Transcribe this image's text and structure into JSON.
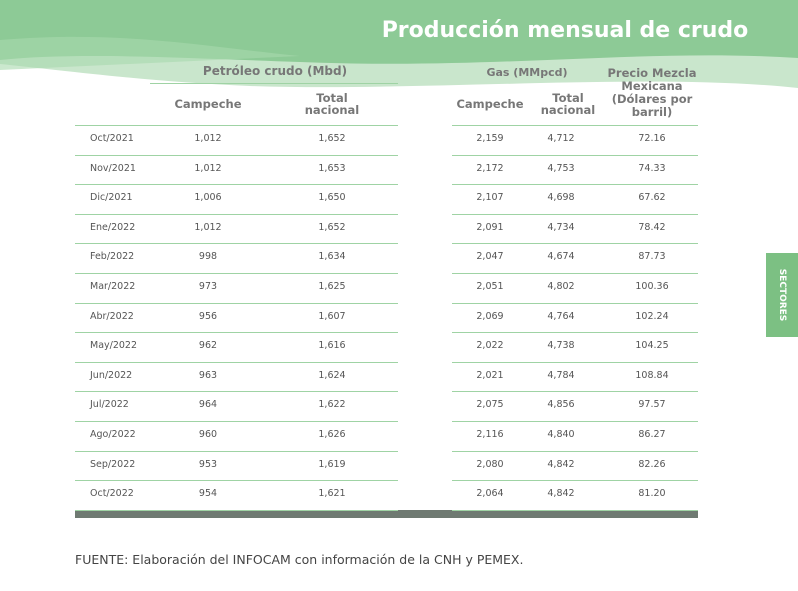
{
  "header": {
    "title": "Producción mensual de crudo"
  },
  "side_tab": "SECTORES",
  "table": {
    "group_headers": [
      "Petróleo crudo (Mbd)",
      "Gas (MMpcd)",
      "Precio Mezcla Mexicana (Dólares por barril)"
    ],
    "columns": [
      "Campeche",
      "Total nacional",
      "Campeche",
      "Total nacional"
    ],
    "rows": [
      [
        "Oct/2021",
        "1,012",
        "1,652",
        "2,159",
        "4,712",
        "72.16"
      ],
      [
        "Nov/2021",
        "1,012",
        "1,653",
        "2,172",
        "4,753",
        "74.33"
      ],
      [
        "Dic/2021",
        "1,006",
        "1,650",
        "2,107",
        "4,698",
        "67.62"
      ],
      [
        "Ene/2022",
        "1,012",
        "1,652",
        "2,091",
        "4,734",
        "78.42"
      ],
      [
        "Feb/2022",
        "998",
        "1,634",
        "2,047",
        "4,674",
        "87.73"
      ],
      [
        "Mar/2022",
        "973",
        "1,625",
        "2,051",
        "4,802",
        "100.36"
      ],
      [
        "Abr/2022",
        "956",
        "1,607",
        "2,069",
        "4,764",
        "102.24"
      ],
      [
        "May/2022",
        "962",
        "1,616",
        "2,022",
        "4,738",
        "104.25"
      ],
      [
        "Jun/2022",
        "963",
        "1,624",
        "2,021",
        "4,784",
        "108.84"
      ],
      [
        "Jul/2022",
        "964",
        "1,622",
        "2,075",
        "4,856",
        "97.57"
      ],
      [
        "Ago/2022",
        "960",
        "1,626",
        "2,116",
        "4,840",
        "86.27"
      ],
      [
        "Sep/2022",
        "953",
        "1,619",
        "2,080",
        "4,842",
        "82.26"
      ],
      [
        "Oct/2022",
        "954",
        "1,621",
        "2,064",
        "4,842",
        "81.20"
      ]
    ]
  },
  "source": "FUENTE: Elaboración del INFOCAM con información de la CNH y PEMEX."
}
